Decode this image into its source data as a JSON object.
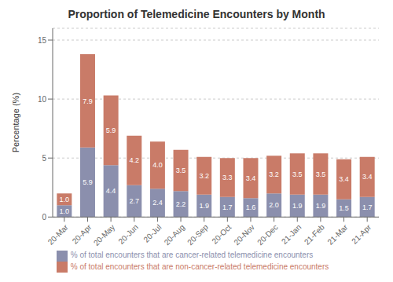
{
  "chart_data": {
    "type": "bar",
    "title": "Proportion of Telemedicine Encounters by Month",
    "ylabel": "Percentage (%)",
    "categories": [
      "20-Mar",
      "20-Apr",
      "20-May",
      "20-Jun",
      "20-Jul",
      "20-Aug",
      "20-Sep",
      "20-Oct",
      "20-Nov",
      "20-Dec",
      "21-Jan",
      "21-Feb",
      "21-Mar",
      "21-Apr"
    ],
    "series": [
      {
        "name": "% of total encounters that are cancer-related telemedicine encounters",
        "color": "#8b8fad",
        "values": [
          1.0,
          5.9,
          4.4,
          2.7,
          2.4,
          2.2,
          1.9,
          1.7,
          1.6,
          2.0,
          1.9,
          1.9,
          1.5,
          1.7
        ],
        "value_labels": [
          "1.0",
          "5.9",
          "4.4",
          "2.7",
          "2.4",
          "2.2",
          "1.9",
          "1.7",
          "1.6",
          "2.0",
          "1.9",
          "1.9",
          "1.5",
          "1.7"
        ]
      },
      {
        "name": "% of total encounters that are non-cancer-related telemedicine encounters",
        "color": "#c97b68",
        "values": [
          1.0,
          7.9,
          5.9,
          4.2,
          4.0,
          3.5,
          3.2,
          3.3,
          3.4,
          3.2,
          3.5,
          3.5,
          3.4,
          3.4
        ],
        "value_labels": [
          "1.0",
          "7.9",
          "5.9",
          "4.2",
          "4.0",
          "3.5",
          "3.2",
          "3.3",
          "3.4",
          "3.2",
          "3.5",
          "3.5",
          "3.4",
          "3.4"
        ]
      }
    ],
    "ylim": [
      0,
      16
    ],
    "yticks": [
      0,
      5,
      10,
      15
    ],
    "stacked": true,
    "grid": true,
    "data_labels": true,
    "legend": "bottom"
  }
}
